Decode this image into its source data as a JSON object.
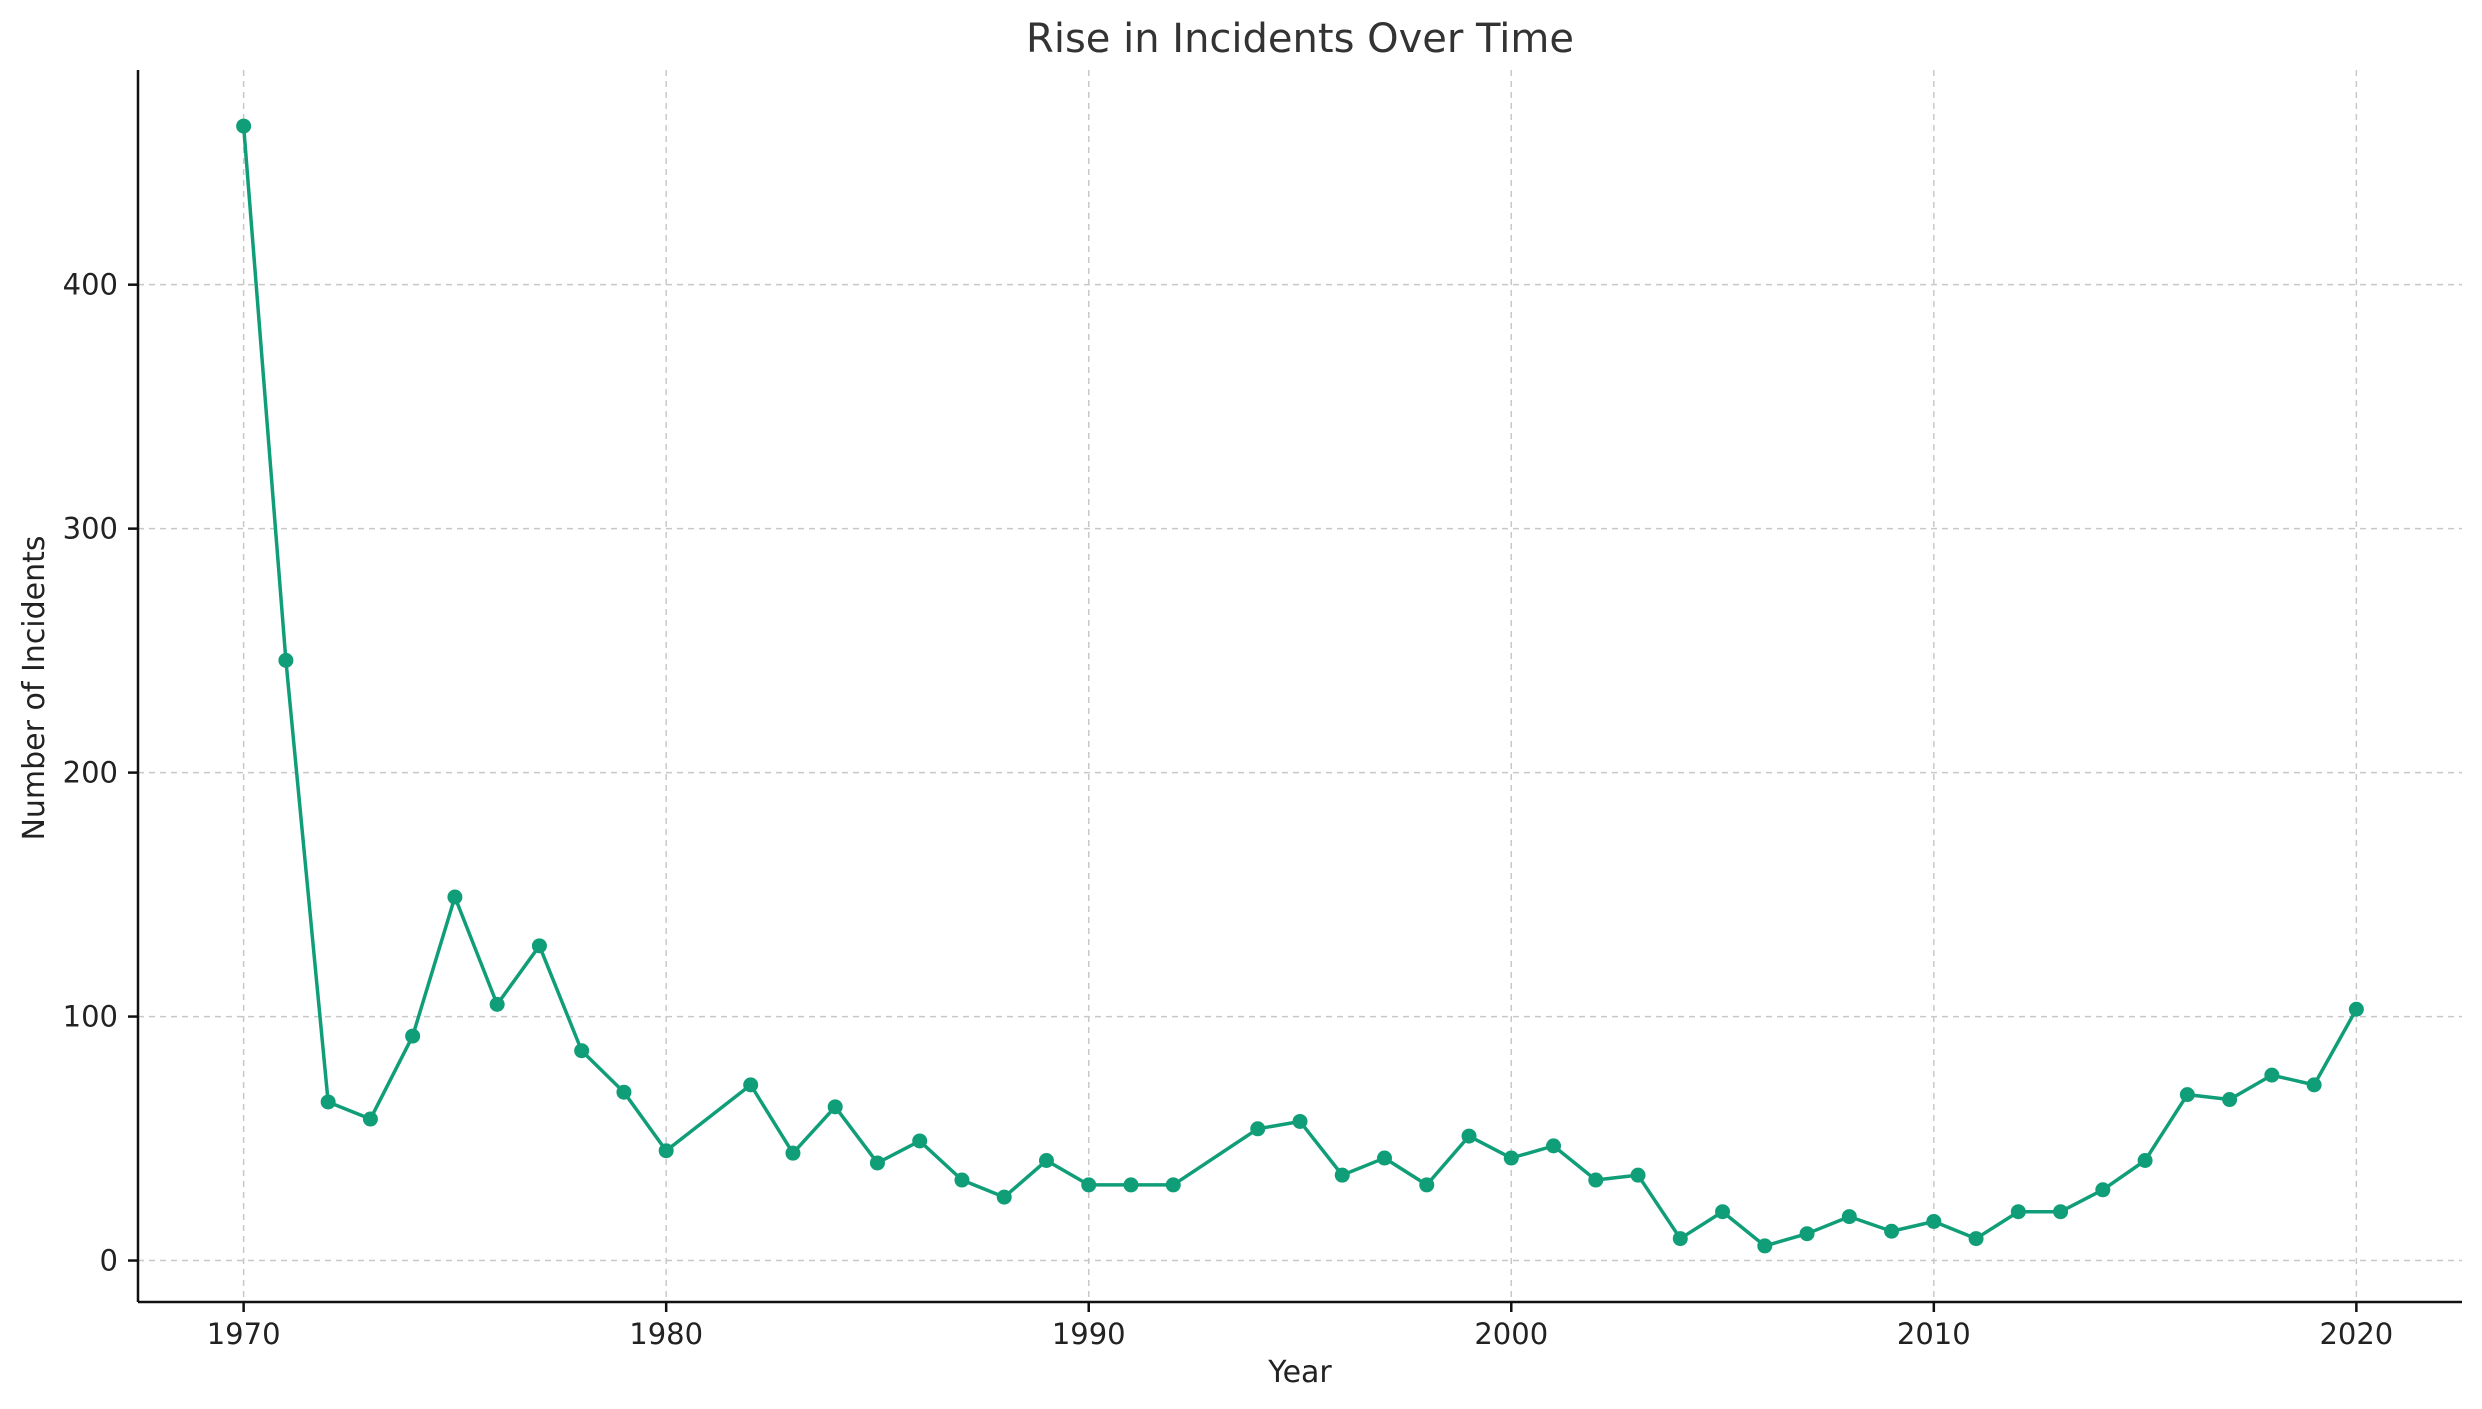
{
  "chart_data": {
    "type": "line",
    "title": "Rise in Incidents Over Time",
    "xlabel": "Year",
    "ylabel": "Number of Incidents",
    "xlim": [
      1967.5,
      2022.5
    ],
    "ylim": [
      -17,
      488
    ],
    "xticks": [
      1970,
      1980,
      1990,
      2000,
      2010,
      2020
    ],
    "yticks": [
      0,
      100,
      200,
      300,
      400
    ],
    "grid": true,
    "line_color": "#109e78",
    "series": [
      {
        "x": [
          1970,
          1971,
          1972,
          1973,
          1974,
          1975,
          1976,
          1977,
          1978,
          1979,
          1980,
          1982,
          1983,
          1984,
          1985,
          1986,
          1987,
          1988,
          1989,
          1990,
          1991,
          1992,
          1994,
          1995,
          1996,
          1997,
          1998,
          1999,
          2000,
          2001,
          2002,
          2003,
          2004,
          2005,
          2006,
          2007,
          2008,
          2009,
          2010,
          2011,
          2012,
          2013,
          2014,
          2015,
          2016,
          2017,
          2018,
          2019,
          2020
        ],
        "values": [
          465,
          246,
          65,
          58,
          92,
          149,
          105,
          129,
          86,
          69,
          45,
          72,
          44,
          63,
          40,
          49,
          33,
          26,
          41,
          31,
          31,
          31,
          54,
          57,
          35,
          42,
          31,
          51,
          42,
          47,
          33,
          35,
          9,
          20,
          6,
          11,
          18,
          12,
          16,
          9,
          20,
          20,
          29,
          41,
          68,
          66,
          76,
          72,
          103
        ]
      }
    ]
  }
}
